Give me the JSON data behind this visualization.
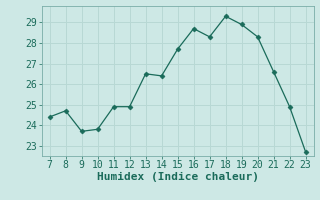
{
  "x": [
    7,
    8,
    9,
    10,
    11,
    12,
    13,
    14,
    15,
    16,
    17,
    18,
    19,
    20,
    21,
    22,
    23
  ],
  "y": [
    24.4,
    24.7,
    23.7,
    23.8,
    24.9,
    24.9,
    26.5,
    26.4,
    27.7,
    28.7,
    28.3,
    29.3,
    28.9,
    28.3,
    26.6,
    24.9,
    22.7
  ],
  "line_color": "#1a6b5a",
  "marker": "D",
  "marker_size": 2.5,
  "background_color": "#cde8e5",
  "grid_color": "#b8d8d4",
  "xlabel": "Humidex (Indice chaleur)",
  "xlabel_fontsize": 8,
  "tick_fontsize": 7,
  "ylim": [
    22.5,
    29.8
  ],
  "xlim": [
    6.5,
    23.5
  ],
  "yticks": [
    23,
    24,
    25,
    26,
    27,
    28,
    29
  ],
  "xticks": [
    7,
    8,
    9,
    10,
    11,
    12,
    13,
    14,
    15,
    16,
    17,
    18,
    19,
    20,
    21,
    22,
    23
  ]
}
